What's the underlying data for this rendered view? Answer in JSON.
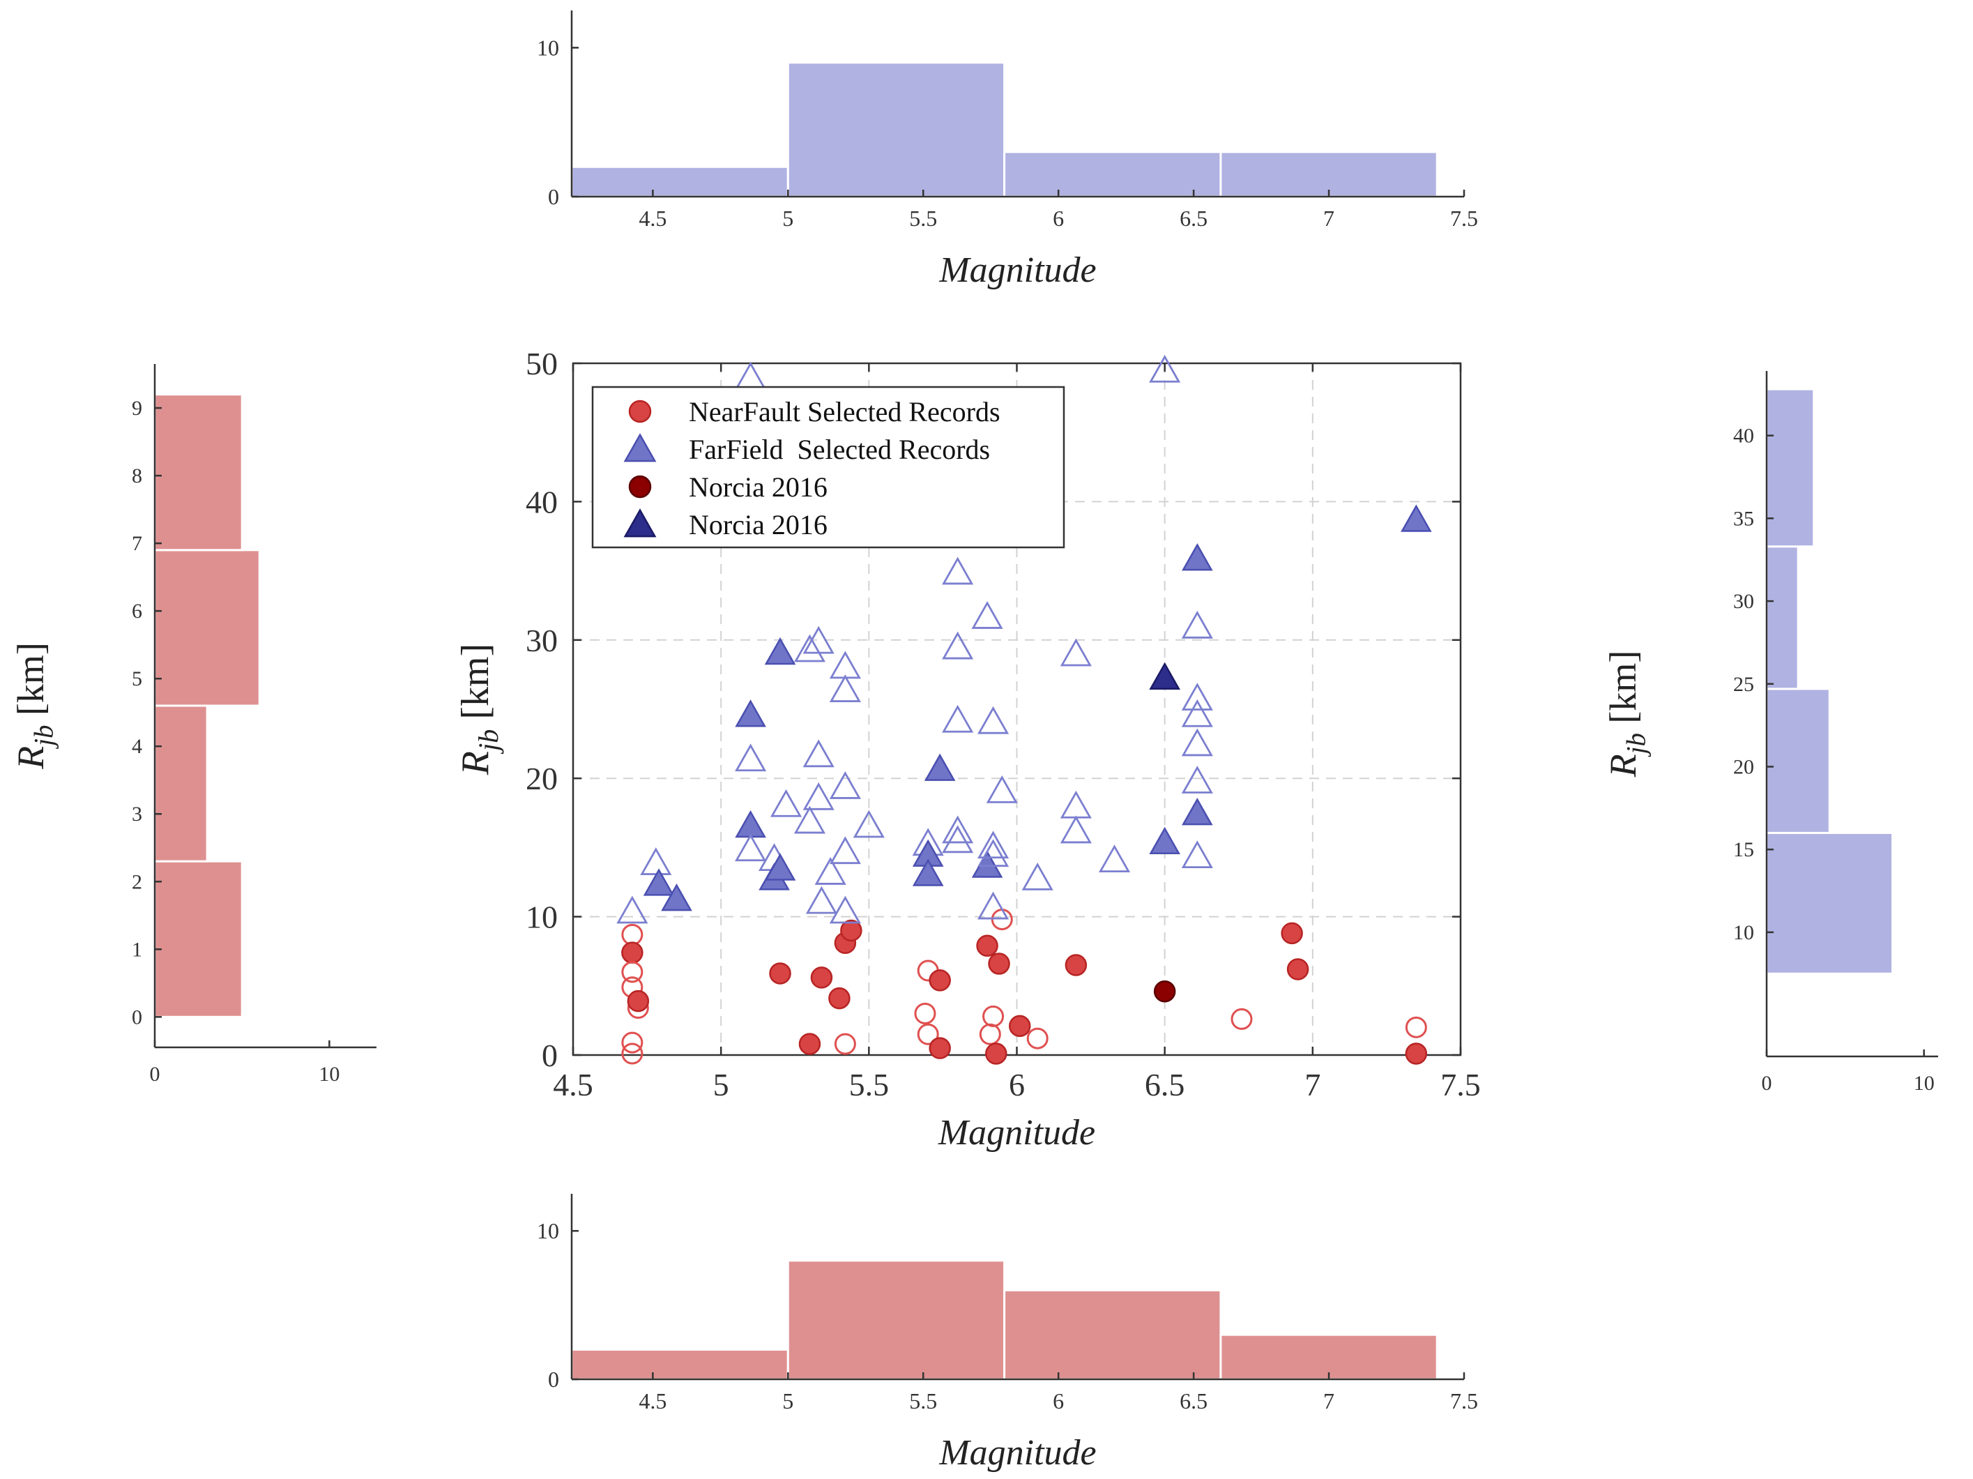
{
  "chart_data": [
    {
      "id": "top",
      "type": "bar",
      "title": "",
      "xlabel": "Magnitude",
      "ylabel": "",
      "bin_edges": [
        4.2,
        5.0,
        5.8,
        6.6,
        7.4
      ],
      "values": [
        2,
        9,
        3,
        3
      ],
      "xlim": [
        4.2,
        7.5
      ],
      "ylim": [
        0,
        12.5
      ],
      "xticks": [
        4.5,
        5,
        5.5,
        6,
        6.5,
        7,
        7.5
      ],
      "xtick_labels": [
        "4.5",
        "5",
        "5.5",
        "6",
        "6.5",
        "7",
        "7.5"
      ],
      "yticks": [
        0,
        10
      ],
      "ytick_labels": [
        "0",
        "10"
      ],
      "color": "#b0b2e2"
    },
    {
      "id": "bottom",
      "type": "bar",
      "title": "",
      "xlabel": "Magnitude",
      "ylabel": "",
      "bin_edges": [
        4.2,
        5.0,
        5.8,
        6.6,
        7.4
      ],
      "values": [
        2,
        8,
        6,
        3
      ],
      "xlim": [
        4.2,
        7.5
      ],
      "ylim": [
        0,
        12.5
      ],
      "xticks": [
        4.5,
        5,
        5.5,
        6,
        6.5,
        7,
        7.5
      ],
      "xtick_labels": [
        "4.5",
        "5",
        "5.5",
        "6",
        "6.5",
        "7",
        "7.5"
      ],
      "yticks": [
        0,
        10
      ],
      "ytick_labels": [
        "0",
        "10"
      ],
      "color": "#de9090"
    },
    {
      "id": "left",
      "type": "bar",
      "orientation": "horizontal",
      "title": "",
      "ylabel_base": "R",
      "ylabel_sub": "jb",
      "ylabel_unit": "[km]",
      "bin_edges": [
        0,
        2.3,
        4.6,
        6.9,
        9.2
      ],
      "values": [
        5,
        3,
        6,
        5
      ],
      "xlim": [
        0,
        12.7
      ],
      "ylim": [
        -0.45,
        9.65
      ],
      "xticks": [
        0,
        10
      ],
      "xtick_labels": [
        "0",
        "10"
      ],
      "yticks": [
        0,
        1,
        2,
        3,
        4,
        5,
        6,
        7,
        8,
        9
      ],
      "ytick_labels": [
        "0",
        "1",
        "2",
        "3",
        "4",
        "5",
        "6",
        "7",
        "8",
        "9"
      ],
      "color": "#de9090"
    },
    {
      "id": "right",
      "type": "bar",
      "orientation": "horizontal",
      "title": "",
      "ylabel_base": "R",
      "ylabel_sub": "jb",
      "ylabel_unit": "[km]",
      "bin_edges": [
        7.5,
        16.0,
        24.7,
        33.3,
        42.8
      ],
      "values": [
        8,
        4,
        2,
        3
      ],
      "xlim": [
        0,
        10.9
      ],
      "ylim": [
        2.5,
        43.9
      ],
      "xticks": [
        0,
        10
      ],
      "xtick_labels": [
        "0",
        "10"
      ],
      "yticks": [
        10,
        15,
        20,
        25,
        30,
        35,
        40
      ],
      "ytick_labels": [
        "10",
        "15",
        "20",
        "25",
        "30",
        "35",
        "40"
      ],
      "color": "#b0b2e2"
    },
    {
      "id": "main",
      "type": "scatter",
      "title": "",
      "xlabel": "Magnitude",
      "ylabel_base": "R",
      "ylabel_sub": "jb",
      "ylabel_unit": "[km]",
      "xlim": [
        4.5,
        7.5
      ],
      "ylim": [
        0,
        50
      ],
      "xticks": [
        4.5,
        5,
        5.5,
        6,
        6.5,
        7,
        7.5
      ],
      "xtick_labels": [
        "4.5",
        "5",
        "5.5",
        "6",
        "6.5",
        "7",
        "7.5"
      ],
      "yticks": [
        0,
        10,
        20,
        30,
        40,
        50
      ],
      "ytick_labels": [
        "0",
        "10",
        "20",
        "30",
        "40",
        "50"
      ],
      "grid": true,
      "legend_position": "top-left",
      "legend": [
        {
          "label": "NearFault Selected Records",
          "marker": "circle",
          "color": "#e05050"
        },
        {
          "label": "FarField  Selected Records",
          "marker": "triangle",
          "color": "#7b7fcf"
        },
        {
          "label": "Norcia 2016",
          "marker": "circle",
          "color": "#8b0000"
        },
        {
          "label": "Norcia 2016",
          "marker": "triangle",
          "color": "#2d2d8c"
        }
      ],
      "series": [
        {
          "name": "NearFault Selected Records",
          "marker": "circle",
          "color": "#e05050",
          "points": [
            {
              "x": 4.7,
              "y": 8.7,
              "filled": false
            },
            {
              "x": 4.7,
              "y": 7.4,
              "filled": true
            },
            {
              "x": 4.7,
              "y": 6.0,
              "filled": false
            },
            {
              "x": 4.7,
              "y": 4.9,
              "filled": false
            },
            {
              "x": 4.7,
              "y": 0.9,
              "filled": false
            },
            {
              "x": 4.7,
              "y": 0.1,
              "filled": false
            },
            {
              "x": 4.72,
              "y": 3.4,
              "filled": false
            },
            {
              "x": 4.72,
              "y": 3.9,
              "filled": true
            },
            {
              "x": 5.2,
              "y": 5.9,
              "filled": true
            },
            {
              "x": 5.3,
              "y": 0.8,
              "filled": true
            },
            {
              "x": 5.34,
              "y": 5.6,
              "filled": true
            },
            {
              "x": 5.4,
              "y": 4.1,
              "filled": true
            },
            {
              "x": 5.42,
              "y": 8.1,
              "filled": true
            },
            {
              "x": 5.44,
              "y": 9.0,
              "filled": true
            },
            {
              "x": 5.42,
              "y": 0.8,
              "filled": false
            },
            {
              "x": 5.7,
              "y": 6.1,
              "filled": false
            },
            {
              "x": 5.69,
              "y": 3.0,
              "filled": false
            },
            {
              "x": 5.7,
              "y": 1.5,
              "filled": false
            },
            {
              "x": 5.74,
              "y": 5.4,
              "filled": true
            },
            {
              "x": 5.74,
              "y": 0.5,
              "filled": true
            },
            {
              "x": 5.9,
              "y": 7.9,
              "filled": true
            },
            {
              "x": 5.92,
              "y": 2.8,
              "filled": false
            },
            {
              "x": 5.91,
              "y": 1.5,
              "filled": false
            },
            {
              "x": 5.93,
              "y": 0.1,
              "filled": true
            },
            {
              "x": 5.94,
              "y": 6.6,
              "filled": true
            },
            {
              "x": 5.95,
              "y": 9.8,
              "filled": false
            },
            {
              "x": 6.01,
              "y": 2.1,
              "filled": true
            },
            {
              "x": 6.07,
              "y": 1.2,
              "filled": false
            },
            {
              "x": 6.2,
              "y": 6.5,
              "filled": true
            },
            {
              "x": 6.76,
              "y": 2.6,
              "filled": false
            },
            {
              "x": 6.93,
              "y": 8.8,
              "filled": true
            },
            {
              "x": 6.95,
              "y": 6.2,
              "filled": true
            },
            {
              "x": 7.35,
              "y": 2.0,
              "filled": false
            },
            {
              "x": 7.35,
              "y": 0.1,
              "filled": true
            }
          ]
        },
        {
          "name": "FarField  Selected Records",
          "marker": "triangle",
          "color": "#7b7fcf",
          "points": [
            {
              "x": 4.7,
              "y": 10.3,
              "filled": false
            },
            {
              "x": 4.78,
              "y": 13.8,
              "filled": false
            },
            {
              "x": 4.79,
              "y": 12.3,
              "filled": true
            },
            {
              "x": 4.85,
              "y": 11.2,
              "filled": true
            },
            {
              "x": 5.1,
              "y": 48.9,
              "filled": false
            },
            {
              "x": 5.1,
              "y": 24.5,
              "filled": true
            },
            {
              "x": 5.1,
              "y": 21.3,
              "filled": false
            },
            {
              "x": 5.1,
              "y": 16.5,
              "filled": true
            },
            {
              "x": 5.1,
              "y": 14.8,
              "filled": false
            },
            {
              "x": 5.18,
              "y": 14.1,
              "filled": false
            },
            {
              "x": 5.18,
              "y": 12.7,
              "filled": true
            },
            {
              "x": 5.2,
              "y": 13.4,
              "filled": true
            },
            {
              "x": 5.2,
              "y": 29.0,
              "filled": true
            },
            {
              "x": 5.22,
              "y": 18.0,
              "filled": false
            },
            {
              "x": 5.3,
              "y": 16.8,
              "filled": false
            },
            {
              "x": 5.3,
              "y": 29.2,
              "filled": false
            },
            {
              "x": 5.33,
              "y": 29.8,
              "filled": false
            },
            {
              "x": 5.33,
              "y": 21.6,
              "filled": false
            },
            {
              "x": 5.33,
              "y": 18.5,
              "filled": false
            },
            {
              "x": 5.34,
              "y": 11.0,
              "filled": false
            },
            {
              "x": 5.37,
              "y": 13.1,
              "filled": false
            },
            {
              "x": 5.42,
              "y": 28.0,
              "filled": false
            },
            {
              "x": 5.42,
              "y": 26.3,
              "filled": false
            },
            {
              "x": 5.42,
              "y": 19.3,
              "filled": false
            },
            {
              "x": 5.42,
              "y": 14.6,
              "filled": false
            },
            {
              "x": 5.42,
              "y": 10.3,
              "filled": false
            },
            {
              "x": 5.5,
              "y": 16.5,
              "filled": false
            },
            {
              "x": 5.7,
              "y": 15.2,
              "filled": false
            },
            {
              "x": 5.7,
              "y": 14.4,
              "filled": true
            },
            {
              "x": 5.7,
              "y": 13.0,
              "filled": true
            },
            {
              "x": 5.74,
              "y": 20.6,
              "filled": true
            },
            {
              "x": 5.8,
              "y": 34.8,
              "filled": false
            },
            {
              "x": 5.8,
              "y": 29.4,
              "filled": false
            },
            {
              "x": 5.8,
              "y": 24.1,
              "filled": false
            },
            {
              "x": 5.8,
              "y": 16.1,
              "filled": false
            },
            {
              "x": 5.8,
              "y": 15.4,
              "filled": false
            },
            {
              "x": 5.9,
              "y": 31.6,
              "filled": false
            },
            {
              "x": 5.9,
              "y": 13.6,
              "filled": true
            },
            {
              "x": 5.92,
              "y": 24.0,
              "filled": false
            },
            {
              "x": 5.92,
              "y": 15.0,
              "filled": false
            },
            {
              "x": 5.92,
              "y": 14.4,
              "filled": false
            },
            {
              "x": 5.92,
              "y": 10.6,
              "filled": false
            },
            {
              "x": 5.95,
              "y": 19.0,
              "filled": false
            },
            {
              "x": 6.07,
              "y": 12.7,
              "filled": false
            },
            {
              "x": 6.2,
              "y": 28.9,
              "filled": false
            },
            {
              "x": 6.2,
              "y": 17.9,
              "filled": false
            },
            {
              "x": 6.2,
              "y": 16.1,
              "filled": false
            },
            {
              "x": 6.33,
              "y": 14.0,
              "filled": false
            },
            {
              "x": 6.5,
              "y": 49.4,
              "filled": false
            },
            {
              "x": 6.5,
              "y": 15.3,
              "filled": true
            },
            {
              "x": 6.61,
              "y": 35.8,
              "filled": true
            },
            {
              "x": 6.61,
              "y": 30.9,
              "filled": false
            },
            {
              "x": 6.61,
              "y": 25.7,
              "filled": false
            },
            {
              "x": 6.61,
              "y": 24.5,
              "filled": false
            },
            {
              "x": 6.61,
              "y": 22.4,
              "filled": false
            },
            {
              "x": 6.61,
              "y": 19.7,
              "filled": false
            },
            {
              "x": 6.61,
              "y": 17.4,
              "filled": true
            },
            {
              "x": 6.61,
              "y": 14.3,
              "filled": false
            },
            {
              "x": 7.35,
              "y": 38.6,
              "filled": true
            }
          ]
        },
        {
          "name": "Norcia 2016",
          "marker": "circle",
          "color": "#8b0000",
          "points": [
            {
              "x": 6.5,
              "y": 4.6,
              "filled": true
            }
          ]
        },
        {
          "name": "Norcia 2016",
          "marker": "triangle",
          "color": "#2d2d8c",
          "points": [
            {
              "x": 6.5,
              "y": 27.2,
              "filled": true
            }
          ]
        }
      ]
    }
  ]
}
